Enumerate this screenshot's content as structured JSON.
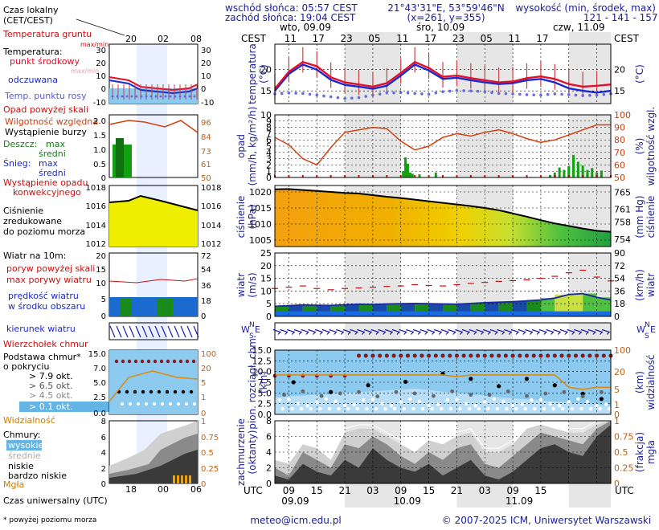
{
  "header": {
    "sunrise": "wschód słońca: 05:57 CEST",
    "sunset": "zachód słońca: 19:04 CEST",
    "coords": "21°43'31\"E, 53°59'46\"N",
    "grid": "(x=261, y=355)",
    "elev_title": "wysokość (min, środek, max)",
    "elev_values": "121 - 141 - 157 m"
  },
  "footer": {
    "email": "meteo@icm.edu.pl",
    "copyright": "© 2007-2025 ICM, Uniwersytet Warszawski",
    "note": "* powyżej poziomu morza",
    "utc_title": "Czas uniwersalny (UTC)"
  },
  "legend": {
    "local_time_1": "Czas lokalny",
    "local_time_2": "(CET/CEST)",
    "ground_temp": "Temperatura gruntu",
    "ground_temp_mm": "max/min",
    "temp": "Temperatura:",
    "temp_mid": "punkt środkowy",
    "temp_range": "max/min",
    "temp_feel": "odczuwana",
    "dew": "Temp. punktu rosy",
    "precip_over": "Opad powyżej skali",
    "humidity": "Wilgotność względna",
    "storm": "Wystąpienie burzy",
    "rain": "Deszcz:",
    "rain_max": "max",
    "rain_avg": "średni",
    "snow": "Śnieg:",
    "snow_max": "max",
    "snow_avg": "średni",
    "conv_1": "Wystąpienie opadu",
    "conv_2": "konwekcyjnego",
    "press_1": "Ciśnienie",
    "press_2": "zredukowane",
    "press_3": "do poziomu morza",
    "wind": "Wiatr na 10m:",
    "gust_over": "poryw powyżej skali",
    "gust": "max porywy wiatru",
    "wind_avg_1": "prędkość wiatru",
    "wind_avg_2": "w środku obszaru",
    "wind_dir": "kierunek wiatru",
    "cloud_top": "Wierzchołek chmur",
    "cloud_base_1": "Podstawa chmur*",
    "cloud_base_2": "o pokryciu",
    "okt_79": "> 7.9 okt.",
    "okt_65": "> 6.5 okt.",
    "okt_45": "> 4.5 okt.",
    "okt_25": "> 2.5 okt.",
    "okt_01": "> 0.1 okt.",
    "visibility": "Widzialność",
    "clouds": "Chmury:",
    "cl_high": "wysokie",
    "cl_mid": "średnie",
    "cl_low": "niskie",
    "cl_vlow": "bardzo niskie",
    "fog": "Mgła"
  },
  "legend_ticks": {
    "top": [
      "20",
      "02",
      "08"
    ],
    "bottom": [
      "18",
      "00",
      "06"
    ]
  },
  "top_axis": {
    "cest": "CEST",
    "days": [
      "wto, 09.09",
      "śro, 10.09",
      "czw, 11.09"
    ],
    "hours": [
      "11",
      "17",
      "23",
      "05",
      "11",
      "17",
      "23",
      "05",
      "11",
      "17"
    ]
  },
  "bottom_axis": {
    "utc": "UTC",
    "hours": [
      "09",
      "15",
      "21",
      "03",
      "09",
      "15",
      "21",
      "03",
      "09",
      "15"
    ],
    "dates": [
      "09.09",
      "10.09",
      "11.09"
    ]
  },
  "panel_labels": {
    "temp_l": "temperatura",
    "temp_l2": "(°C)",
    "temp_r": "(°C)",
    "prec_l": "opad",
    "prec_l2": "(mm/h, kg/m²/h)",
    "prec_r": "(%)",
    "prec_r2": "wilgotność wzgl.",
    "pres_l": "ciśnienie",
    "pres_l2": "(hPa)",
    "pres_r": "(mm Hg)",
    "pres_r2": "ciśnienie",
    "wind_l": "wiatr",
    "wind_l2": "(m/s)",
    "wind_r": "(km/h)",
    "wind_r2": "wiatr",
    "cb_l": "pion. rozciągł. chm.",
    "cb_l2": "(km)",
    "cb_r": "(km)",
    "cb_r2": "widzialność",
    "cc_l": "zachmurzenie",
    "cc_l2": "(oktanty)",
    "cc_r": "(frakcja)",
    "cc_r2": "mgła",
    "compass_w": "W",
    "compass_n": "N",
    "compass_s": "S",
    "compass_e": "E"
  },
  "chart_data": [
    {
      "type": "line",
      "panel": "temperature",
      "x_unit": "hours since 09.09 06:00 UTC",
      "x": [
        0,
        3,
        6,
        9,
        12,
        15,
        18,
        21,
        24,
        27,
        30,
        33,
        36,
        39,
        42,
        45,
        48,
        51,
        54,
        57,
        60,
        63,
        66,
        69,
        72
      ],
      "ylim": [
        12,
        26
      ],
      "y_ticks": [
        15,
        20
      ],
      "series": [
        {
          "name": "temperatura",
          "color": "#e0102a",
          "values": [
            15.5,
            19.5,
            21.8,
            20.8,
            18.2,
            17.0,
            16.5,
            16.0,
            16.8,
            19.2,
            21.8,
            20.4,
            18.3,
            18.6,
            18.0,
            17.5,
            17.0,
            17.2,
            18.0,
            18.4,
            17.8,
            16.6,
            16.0,
            16.2,
            16.5
          ]
        },
        {
          "name": "odczuwana",
          "color": "#1a28d0",
          "values": [
            15.0,
            19.0,
            21.2,
            20.0,
            17.6,
            16.4,
            16.0,
            15.5,
            16.2,
            18.6,
            21.2,
            19.8,
            17.8,
            18.1,
            17.5,
            17.0,
            16.6,
            16.8,
            17.5,
            17.8,
            17.0,
            15.6,
            15.0,
            14.6,
            15.0
          ]
        },
        {
          "name": "Temp. punktu rosy",
          "color": "#6a6ae0",
          "values": [
            14.3,
            14.5,
            14.4,
            14.0,
            13.6,
            13.2,
            13.4,
            14.0,
            14.5,
            14.6,
            14.4,
            14.2,
            14.8,
            15.1,
            15.0,
            14.8,
            14.4,
            14.3,
            14.1,
            14.0,
            14.3,
            14.1,
            13.9,
            14.0,
            14.3
          ]
        }
      ]
    },
    {
      "type": "bar",
      "panel": "precipitation",
      "ylim": [
        0,
        10
      ],
      "y_ticks": [
        0,
        1,
        2,
        3,
        4,
        5,
        6,
        7,
        8,
        9,
        10
      ],
      "y2lim": [
        50,
        100
      ],
      "y2_ticks": [
        50,
        60,
        70,
        80,
        90,
        100
      ],
      "rain_x": [
        27.5,
        28,
        28.5,
        29,
        29.5,
        31,
        34.5,
        59,
        60,
        61,
        62,
        63,
        64,
        65,
        66,
        67,
        68,
        69,
        70
      ],
      "rain_values": [
        1.0,
        3.2,
        2.2,
        0.8,
        0.6,
        0.5,
        0.8,
        0.4,
        0.8,
        1.6,
        1.2,
        1.8,
        3.6,
        2.5,
        1.9,
        1.2,
        1.5,
        0.8,
        1.1
      ],
      "humidity_x": [
        0,
        3,
        6,
        9,
        12,
        15,
        18,
        21,
        24,
        27,
        30,
        33,
        36,
        39,
        42,
        45,
        48,
        51,
        54,
        57,
        60,
        63,
        66,
        69,
        72
      ],
      "humidity_values": [
        82,
        76,
        65,
        60,
        74,
        86,
        88,
        90,
        89,
        79,
        72,
        75,
        82,
        85,
        83,
        86,
        88,
        85,
        81,
        78,
        80,
        84,
        88,
        92,
        92
      ]
    },
    {
      "type": "area",
      "panel": "pressure",
      "x": [
        0,
        3,
        6,
        9,
        12,
        15,
        18,
        21,
        24,
        27,
        30,
        33,
        36,
        39,
        42,
        45,
        48,
        51,
        54,
        57,
        60,
        63,
        66,
        69,
        72
      ],
      "ylim": [
        1003,
        1022
      ],
      "y_ticks": [
        1005,
        1010,
        1015,
        1020
      ],
      "y2_ticks": [
        754,
        758,
        761,
        765
      ],
      "values": [
        1020.8,
        1020.9,
        1020.6,
        1020.3,
        1020.0,
        1019.7,
        1019.5,
        1019.0,
        1018.5,
        1018.1,
        1017.6,
        1017.1,
        1016.6,
        1016.1,
        1015.6,
        1015.0,
        1014.3,
        1013.3,
        1012.3,
        1011.2,
        1010.2,
        1009.4,
        1008.6,
        1007.9,
        1007.6
      ]
    },
    {
      "type": "area",
      "panel": "wind",
      "x": [
        0,
        3,
        6,
        9,
        12,
        15,
        18,
        21,
        24,
        27,
        30,
        33,
        36,
        39,
        42,
        45,
        48,
        51,
        54,
        57,
        60,
        63,
        66,
        69,
        72
      ],
      "ylim": [
        0,
        25
      ],
      "y_ticks": [
        0,
        5,
        10,
        15,
        20,
        25
      ],
      "y2_ticks": [
        0,
        18,
        36,
        54,
        72,
        90
      ],
      "series": [
        {
          "name": "prędkość wiatru",
          "values": [
            4,
            4.2,
            4.5,
            4.4,
            4.3,
            4.6,
            4.8,
            4.7,
            4.9,
            5.0,
            5.1,
            5.0,
            4.9,
            4.8,
            5.1,
            5.4,
            5.6,
            5.8,
            6.1,
            6.5,
            7.2,
            8.6,
            9.0,
            7.5,
            6.5
          ]
        },
        {
          "name": "max porywy wiatru",
          "values": [
            11,
            11.5,
            12,
            11,
            10.5,
            11,
            11.2,
            11.5,
            11.8,
            12,
            12.5,
            12.2,
            12,
            12.5,
            13,
            13.4,
            13.8,
            14.1,
            14.4,
            15,
            15.8,
            17.2,
            18.2,
            15.5,
            14
          ]
        }
      ]
    },
    {
      "type": "scatter",
      "panel": "clouds",
      "x_unit": "hours since 09.09 06:00 UTC",
      "ylim": [
        0,
        15
      ],
      "y_ticks": [
        0,
        2.5,
        5,
        7.5,
        10,
        12.5,
        15
      ],
      "y2_ticks": [
        0,
        1,
        5,
        20,
        100
      ],
      "visibility_values": [
        16,
        16,
        16,
        16,
        16,
        16,
        16,
        16,
        16,
        16,
        16,
        16,
        16,
        14,
        16,
        16,
        16,
        16,
        16,
        16,
        16,
        6,
        5,
        6,
        6
      ]
    },
    {
      "type": "area",
      "panel": "cloud-cover",
      "ylim": [
        0,
        8
      ],
      "y_ticks": [
        0,
        2,
        4,
        6,
        8
      ],
      "y2_ticks": [
        0,
        0.25,
        0.5,
        0.75,
        1
      ],
      "x": [
        0,
        3,
        6,
        9,
        12,
        15,
        18,
        21,
        24,
        27,
        30,
        33,
        36,
        39,
        42,
        45,
        48,
        51,
        54,
        57,
        60,
        63,
        66,
        69,
        72
      ],
      "low": [
        1,
        0.5,
        2.5,
        1.5,
        1,
        3,
        2,
        4.5,
        3,
        2,
        1.5,
        2.5,
        1,
        2,
        3,
        1,
        0.5,
        1.5,
        3,
        4.5,
        5,
        4,
        3.5,
        6,
        7.5
      ],
      "mid": [
        2,
        1,
        4,
        3,
        2,
        5,
        4.5,
        6,
        5,
        3.5,
        2.5,
        4,
        3,
        4.5,
        5,
        2.5,
        2,
        3.5,
        5,
        6.5,
        6,
        5.5,
        5,
        7,
        8
      ],
      "high": [
        3,
        2.5,
        5,
        4.5,
        3,
        6.5,
        7,
        7,
        6,
        5,
        4,
        5.5,
        5,
        6,
        6.5,
        4,
        4,
        5,
        7,
        7.5,
        7,
        6.5,
        6.5,
        7.5,
        8
      ]
    }
  ]
}
